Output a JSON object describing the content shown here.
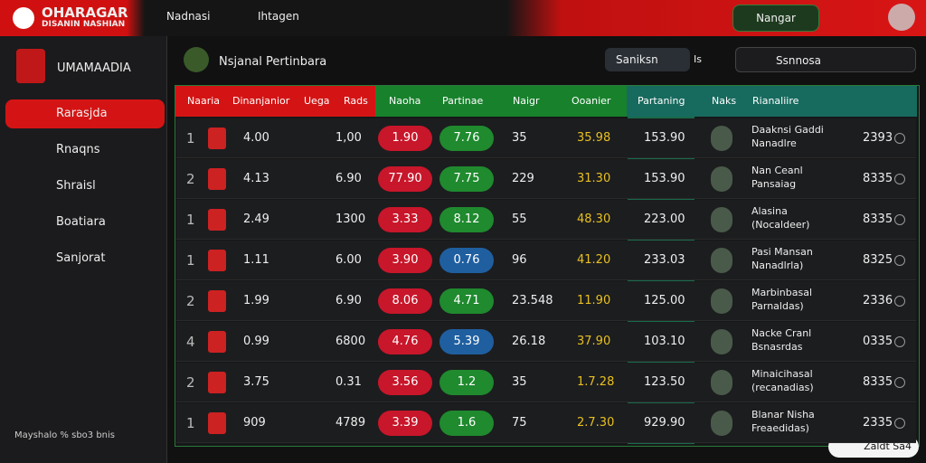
{
  "topbar": {
    "logo_title": "OHARAGAR",
    "logo_subtitle": "DISANIN NASHIAN",
    "nav": [
      "Nadnasi",
      "Ihtagen"
    ],
    "user_button": "Nangar"
  },
  "sidebar": {
    "title": "UMAMAADIA",
    "items": [
      "Rarasjda",
      "Rnaqns",
      "Shraisl",
      "Boatiara",
      "Sanjorat"
    ],
    "footer": "Mayshalo % sbo3 bnis"
  },
  "panel": {
    "title": "Nsjanal Pertinbara",
    "search": "Saniksn",
    "search_count": "Is",
    "select": "Ssnnosa"
  },
  "table": {
    "headers": [
      "Naaria",
      "Dinanjanior",
      "Uega",
      "Rads",
      "Naoha",
      "Partinae",
      "Naigr",
      "Ooanier",
      "Partaning",
      "Naks",
      "Rianaliire"
    ],
    "rows": [
      {
        "rank": "1",
        "a": "4.00",
        "b": "1,00",
        "red": "1.90",
        "pill": "7.76",
        "pill_color": "#1f8a2e",
        "n": "35",
        "gold": "35.98",
        "teal": "153.90",
        "name": [
          "Daaknsi Gaddi",
          "Nanadlre"
        ],
        "score": "2393"
      },
      {
        "rank": "2",
        "a": "4.13",
        "b": "6.90",
        "red": "77.90",
        "pill": "7.75",
        "pill_color": "#1f8a2e",
        "n": "229",
        "gold": "31.30",
        "teal": "153.90",
        "name": [
          "Nan Ceanl",
          "Pansaiag"
        ],
        "score": "8335"
      },
      {
        "rank": "1",
        "a": "2.49",
        "b": "1300",
        "red": "3.33",
        "pill": "8.12",
        "pill_color": "#1f8a2e",
        "n": "55",
        "gold": "48.30",
        "teal": "223.00",
        "name": [
          "Alasina",
          "(Nocaldeer)"
        ],
        "score": "8335"
      },
      {
        "rank": "1",
        "a": "1.11",
        "b": "6.00",
        "red": "3.90",
        "pill": "0.76",
        "pill_color": "#1f5fa0",
        "n": "96",
        "gold": "41.20",
        "teal": "233.03",
        "name": [
          "Pasi Mansan",
          "Nanadlrla)"
        ],
        "score": "8325"
      },
      {
        "rank": "2",
        "a": "1.99",
        "b": "6.90",
        "red": "8.06",
        "pill": "4.71",
        "pill_color": "#1f8a2e",
        "n": "23.548",
        "gold": "11.90",
        "teal": "125.00",
        "name": [
          "Marbinbasal",
          "Parnaldas)"
        ],
        "score": "2336"
      },
      {
        "rank": "4",
        "a": "0.99",
        "b": "6800",
        "red": "4.76",
        "pill": "5.39",
        "pill_color": "#1f5fa0",
        "n": "26.18",
        "gold": "37.90",
        "teal": "103.10",
        "name": [
          "Nacke Cranl",
          "Bsnasrdas"
        ],
        "score": "0335"
      },
      {
        "rank": "2",
        "a": "3.75",
        "b": "0.31",
        "red": "3.56",
        "pill": "1.2",
        "pill_color": "#1f8a2e",
        "n": "35",
        "gold": "1.7.28",
        "teal": "123.50",
        "name": [
          "Minaicihasal",
          "(recanadias)"
        ],
        "score": "8335"
      },
      {
        "rank": "1",
        "a": "909",
        "b": "4789",
        "red": "3.39",
        "pill": "1.6",
        "pill_color": "#1f8a2e",
        "n": "75",
        "gold": "2.7.30",
        "teal": "929.90",
        "name": [
          "Blanar Nisha",
          "Freaedidas)"
        ],
        "score": "2335"
      }
    ]
  },
  "corner_badge": "Zaldt Sa4"
}
